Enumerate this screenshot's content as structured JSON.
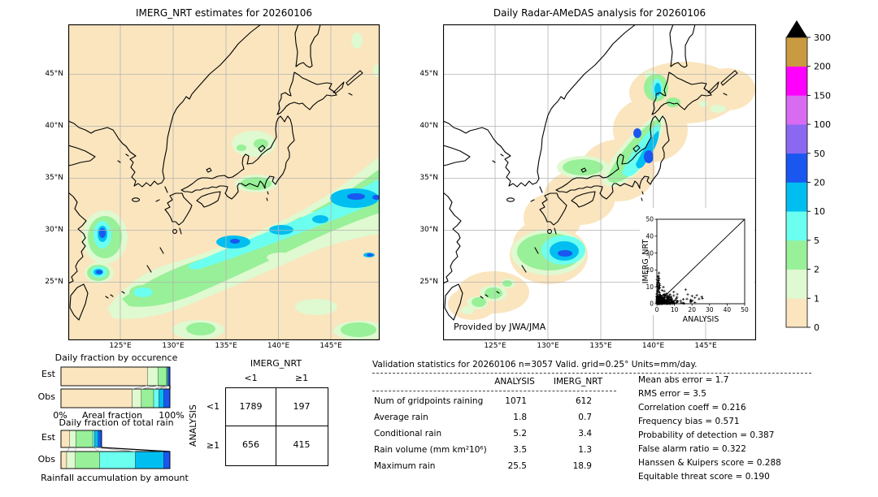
{
  "left_map": {
    "title": "IMERG_NRT estimates for 20260106",
    "y_ticks": [
      "45°N",
      "40°N",
      "35°N",
      "30°N",
      "25°N"
    ],
    "x_ticks": [
      "125°E",
      "130°E",
      "135°E",
      "140°E",
      "145°E"
    ]
  },
  "right_map": {
    "title": "Daily Radar-AMeDAS analysis for 20260106",
    "credit": "Provided by JWA/JMA",
    "y_ticks": [
      "45°N",
      "40°N",
      "35°N",
      "30°N",
      "25°N"
    ],
    "x_ticks": [
      "125°E",
      "130°E",
      "135°E",
      "140°E",
      "145°E"
    ],
    "inset": {
      "xlabel": "ANALYSIS",
      "ylabel": "IMERG_NRT",
      "x_ticks": [
        "0",
        "10",
        "20",
        "30",
        "40",
        "50"
      ],
      "y_ticks": [
        "0",
        "10",
        "20",
        "30",
        "40",
        "50"
      ],
      "xlim": [
        0,
        50
      ],
      "ylim": [
        0,
        50
      ],
      "seed": 11,
      "n_points": 430
    }
  },
  "palette": {
    "scale": [
      {
        "upto": "1",
        "color": "#FAE5BE"
      },
      {
        "upto": "2",
        "color": "#DFF9D0"
      },
      {
        "upto": "5",
        "color": "#98F098"
      },
      {
        "upto": "10",
        "color": "#6BFFEF"
      },
      {
        "upto": "20",
        "color": "#00BEF0"
      },
      {
        "upto": "50",
        "color": "#1A57F0"
      },
      {
        "upto": "100",
        "color": "#8A68F2"
      },
      {
        "upto": "150",
        "color": "#D96BF2"
      },
      {
        "upto": "200",
        "color": "#FF00FF"
      },
      {
        "upto": "300",
        "color": "#C99A3F"
      }
    ],
    "over_color": "#000000"
  },
  "colorbar": {
    "tick_labels": [
      "300",
      "200",
      "150",
      "100",
      "50",
      "20",
      "10",
      "5",
      "2",
      "1",
      "0"
    ],
    "units": "mm/day"
  },
  "chart_data": [
    {
      "type": "bar",
      "id": "occurrence",
      "title": "Daily fraction by occurence",
      "orientation": "horizontal",
      "stacked": true,
      "xlabel": "Areal fraction",
      "x_axis_left": "0%",
      "x_axis_right": "100%",
      "categories": [
        "Est",
        "Obs"
      ],
      "bins_mmday": [
        "<1",
        "1-2",
        "2-5",
        "5-10",
        "10-20",
        "≥20"
      ],
      "bin_colors": [
        "#FAE5BE",
        "#DFF9D0",
        "#98F098",
        "#6BFFEF",
        "#00BEF0",
        "#1A57F0"
      ],
      "series": [
        {
          "name": "Est",
          "values": [
            0.793,
            0.097,
            0.08,
            0.007,
            0.008,
            0.015
          ]
        },
        {
          "name": "Obs",
          "values": [
            0.653,
            0.085,
            0.113,
            0.048,
            0.044,
            0.057
          ]
        }
      ],
      "xlim": [
        0,
        1
      ]
    },
    {
      "type": "bar",
      "id": "total_rain",
      "title": "Daily fraction of total rain",
      "footer": "Rainfall accumulation by amount",
      "orientation": "horizontal",
      "stacked": true,
      "categories": [
        "Est",
        "Obs"
      ],
      "bins_mmday": [
        "<1",
        "1-2",
        "2-5",
        "5-10",
        "10-20",
        "≥20"
      ],
      "bin_colors": [
        "#FAE5BE",
        "#DFF9D0",
        "#98F098",
        "#6BFFEF",
        "#00BEF0",
        "#1A57F0"
      ],
      "note": "bar length proportional to rain volume; Est total = 0.373 of Obs",
      "series": [
        {
          "name": "Est",
          "values": [
            0.08,
            0.057,
            0.155,
            0.017,
            0.032,
            0.032
          ]
        },
        {
          "name": "Obs",
          "values": [
            0.052,
            0.08,
            0.222,
            0.329,
            0.259,
            0.058
          ]
        }
      ],
      "xlim": [
        0,
        1
      ]
    },
    {
      "type": "table",
      "id": "contingency",
      "title": "Contingency table (number of gridpoints)",
      "col_dim": "IMERG_NRT",
      "row_dim": "ANALYSIS",
      "col_labels": [
        "<1",
        "≥1"
      ],
      "row_labels": [
        "<1",
        "≥1"
      ],
      "matrix": [
        [
          1789,
          197
        ],
        [
          656,
          415
        ]
      ]
    },
    {
      "type": "scatter",
      "id": "inset_scatter",
      "xlabel": "ANALYSIS",
      "ylabel": "IMERG_NRT",
      "xlim": [
        0,
        50
      ],
      "ylim": [
        0,
        50
      ],
      "marker": "+",
      "description": "dense cluster of points near origin, mostly x<27 and y<20, below the 1:1 diagonal line"
    }
  ],
  "contingency": {
    "col_header": "IMERG_NRT",
    "row_header": "ANALYSIS",
    "col_labels": [
      "<1",
      "≥1"
    ],
    "row_labels": [
      "<1",
      "≥1"
    ],
    "values": [
      [
        "1789",
        "197"
      ],
      [
        "656",
        "415"
      ]
    ]
  },
  "validation": {
    "title": "Validation statistics for 20260106  n=3057 Valid. grid=0.25° Units=mm/day.",
    "col_headers": [
      "ANALYSIS",
      "IMERG_NRT"
    ],
    "eq": "=",
    "rows": [
      {
        "label": "Num of gridpoints raining",
        "analysis": "1071",
        "imerg": "612"
      },
      {
        "label": "Average rain",
        "analysis": "1.8",
        "imerg": "0.7"
      },
      {
        "label": "Conditional rain",
        "analysis": "5.2",
        "imerg": "3.4"
      },
      {
        "label": "Rain volume (mm km²10⁶)",
        "analysis": "3.5",
        "imerg": "1.3"
      },
      {
        "label": "Maximum rain",
        "analysis": "25.5",
        "imerg": "18.9"
      }
    ],
    "scores": [
      {
        "label": "Mean abs error",
        "value": "1.7"
      },
      {
        "label": "RMS error",
        "value": "3.5"
      },
      {
        "label": "Correlation coeff",
        "value": "0.216"
      },
      {
        "label": "Frequency bias",
        "value": "0.571"
      },
      {
        "label": "Probability of detection",
        "value": "0.387"
      },
      {
        "label": "False alarm ratio",
        "value": "0.322"
      },
      {
        "label": "Hanssen & Kuipers score",
        "value": "0.288"
      },
      {
        "label": "Equitable threat score",
        "value": "0.190"
      }
    ]
  }
}
